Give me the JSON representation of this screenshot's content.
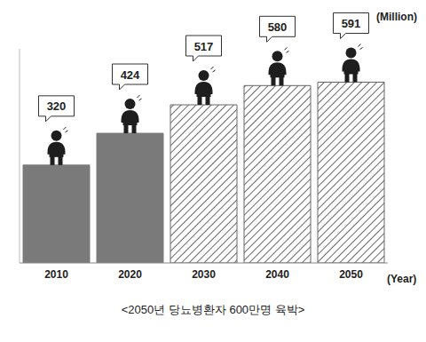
{
  "chart_data": {
    "type": "bar",
    "title": "<2050년 당뇨병환자 600만명 육박>",
    "x_label": "(Year)",
    "y_label": "(Million)",
    "categories": [
      "2010",
      "2020",
      "2030",
      "2040",
      "2050"
    ],
    "values": [
      320,
      424,
      517,
      580,
      591
    ],
    "colors": [
      "#7a7a7a",
      "#7a7a7a",
      "#ffffff",
      "#ffffff",
      "#ffffff"
    ],
    "ylim": [
      0,
      700
    ],
    "yticks": [],
    "grid": false,
    "data_labels": true,
    "tick_labels": "x"
  }
}
